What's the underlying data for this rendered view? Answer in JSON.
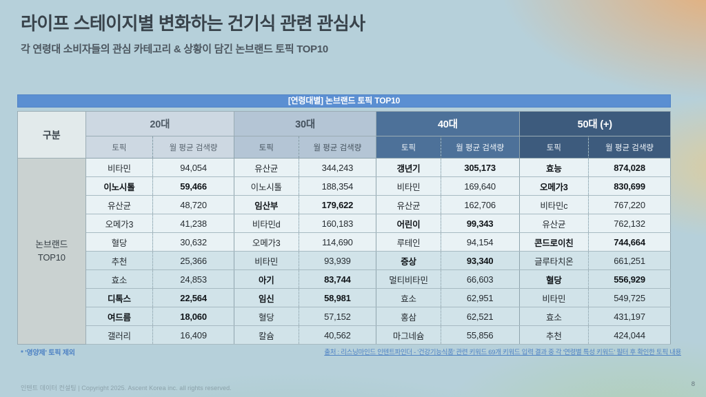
{
  "header": {
    "title": "라이프 스테이지별 변화하는 건기식 관련 관심사",
    "subtitle": "각 연령대 소비자들의 관심 카테고리 & 상황이 담긴 논브랜드 토픽 TOP10"
  },
  "banner": {
    "text": "[연령대별] 논브랜드 토픽 TOP10"
  },
  "table": {
    "corner_label": "구분",
    "row_group_label": "논브랜드\nTOP10",
    "sub_headers": [
      "토픽",
      "월 평균 검색량"
    ],
    "groups": [
      {
        "label": "20대",
        "rows": [
          {
            "topic": "비타민",
            "volume": "94,054",
            "bold": false
          },
          {
            "topic": "이노시톨",
            "volume": "59,466",
            "bold": true
          },
          {
            "topic": "유산균",
            "volume": "48,720",
            "bold": false
          },
          {
            "topic": "오메가3",
            "volume": "41,238",
            "bold": false
          },
          {
            "topic": "혈당",
            "volume": "30,632",
            "bold": false
          },
          {
            "topic": "추천",
            "volume": "25,366",
            "bold": false
          },
          {
            "topic": "효소",
            "volume": "24,853",
            "bold": false
          },
          {
            "topic": "디톡스",
            "volume": "22,564",
            "bold": true
          },
          {
            "topic": "여드름",
            "volume": "18,060",
            "bold": true
          },
          {
            "topic": "갤러리",
            "volume": "16,409",
            "bold": false
          }
        ]
      },
      {
        "label": "30대",
        "rows": [
          {
            "topic": "유산균",
            "volume": "344,243",
            "bold": false
          },
          {
            "topic": "이노시톨",
            "volume": "188,354",
            "bold": false
          },
          {
            "topic": "임산부",
            "volume": "179,622",
            "bold": true
          },
          {
            "topic": "비타민d",
            "volume": "160,183",
            "bold": false
          },
          {
            "topic": "오메가3",
            "volume": "114,690",
            "bold": false
          },
          {
            "topic": "비타민",
            "volume": "93,939",
            "bold": false
          },
          {
            "topic": "아기",
            "volume": "83,744",
            "bold": true
          },
          {
            "topic": "임신",
            "volume": "58,981",
            "bold": true
          },
          {
            "topic": "혈당",
            "volume": "57,152",
            "bold": false
          },
          {
            "topic": "칼슘",
            "volume": "40,562",
            "bold": false
          }
        ]
      },
      {
        "label": "40대",
        "rows": [
          {
            "topic": "갱년기",
            "volume": "305,173",
            "bold": true
          },
          {
            "topic": "비타민",
            "volume": "169,640",
            "bold": false
          },
          {
            "topic": "유산균",
            "volume": "162,706",
            "bold": false
          },
          {
            "topic": "어린이",
            "volume": "99,343",
            "bold": true
          },
          {
            "topic": "루테인",
            "volume": "94,154",
            "bold": false
          },
          {
            "topic": "증상",
            "volume": "93,340",
            "bold": true
          },
          {
            "topic": "멀티비타민",
            "volume": "66,603",
            "bold": false
          },
          {
            "topic": "효소",
            "volume": "62,951",
            "bold": false
          },
          {
            "topic": "홍삼",
            "volume": "62,521",
            "bold": false
          },
          {
            "topic": "마그네슘",
            "volume": "55,856",
            "bold": false
          }
        ]
      },
      {
        "label": "50대 (+)",
        "rows": [
          {
            "topic": "효능",
            "volume": "874,028",
            "bold": true
          },
          {
            "topic": "오메가3",
            "volume": "830,699",
            "bold": true
          },
          {
            "topic": "비타민c",
            "volume": "767,220",
            "bold": false
          },
          {
            "topic": "유산균",
            "volume": "762,132",
            "bold": false
          },
          {
            "topic": "콘드로이친",
            "volume": "744,664",
            "bold": true
          },
          {
            "topic": "글루타치온",
            "volume": "661,251",
            "bold": false
          },
          {
            "topic": "혈당",
            "volume": "556,929",
            "bold": true
          },
          {
            "topic": "비타민",
            "volume": "549,725",
            "bold": false
          },
          {
            "topic": "효소",
            "volume": "431,197",
            "bold": false
          },
          {
            "topic": "추천",
            "volume": "424,044",
            "bold": false
          }
        ]
      }
    ]
  },
  "footer": {
    "footnote": "* '영양제' 토픽 제외",
    "source": "출처 : 리스닝마인드 인텐트파인더 - '건강기능식품' 관련 키워드 69개 키워드 입력 결과 중 각 '연령별 특성 키워드' 필터 후 확인한 토픽 내용",
    "copyright": "인텐트 데이터 컨설팅 | Copyright 2025. Ascent Korea inc. all rights reserved.",
    "page_number": "8"
  },
  "colors": {
    "banner-bg": "#5b8fd2",
    "g0-bg": "#cdd8e2",
    "g1-bg": "#b4c5d5",
    "g2-bg": "#4d7199",
    "g3-bg": "#3d5b7d",
    "band-a": "#e9f2f5",
    "band-b": "#d1e3e9",
    "accent-link": "#4e82c4"
  }
}
